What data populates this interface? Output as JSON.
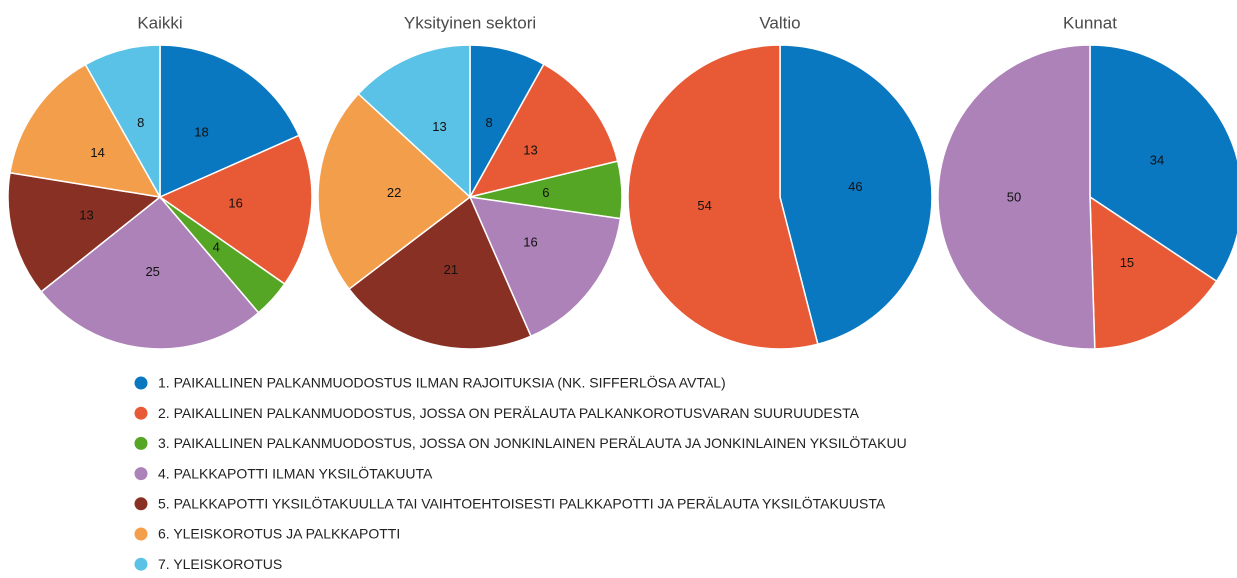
{
  "legend": {
    "names": [
      "1. PAIKALLINEN PALKANMUODOSTUS ILMAN RAJOITUKSIA (NK. SIFFERLÖSA AVTAL)",
      "2. PAIKALLINEN PALKANMUODOSTUS, JOSSA ON PERÄLAUTA PALKANKOROTUSVARAN SUURUUDESTA",
      "3. PAIKALLINEN PALKANMUODOSTUS, JOSSA ON JONKINLAINEN PERÄLAUTA JA JONKINLAINEN YKSILÖTAKUU",
      "4. PALKKAPOTTI ILMAN YKSILÖTAKUUTA",
      "5. PALKKAPOTTI YKSILÖTAKUULLA TAI VAIHTOEHTOISESTI PALKKAPOTTI JA PERÄLAUTA YKSILÖTAKUUSTA",
      "6. YLEISKOROTUS JA PALKKAPOTTI",
      "7. YLEISKOROTUS"
    ],
    "colors": [
      "#0a78c0",
      "#e85a35",
      "#56a626",
      "#ad82b8",
      "#893024",
      "#f39e4a",
      "#5bc2e7"
    ]
  },
  "chart_data": [
    {
      "type": "pie",
      "title": "Kaikki",
      "values": [
        18,
        16,
        4,
        25,
        13,
        14,
        8
      ]
    },
    {
      "type": "pie",
      "title": "Yksityinen sektori",
      "values": [
        8,
        13,
        6,
        16,
        21,
        22,
        13
      ]
    },
    {
      "type": "pie",
      "title": "Valtio",
      "values": [
        46,
        54,
        null,
        null,
        null,
        null,
        null
      ]
    },
    {
      "type": "pie",
      "title": "Kunnat",
      "values": [
        34,
        15,
        null,
        50,
        null,
        null,
        null
      ]
    }
  ]
}
